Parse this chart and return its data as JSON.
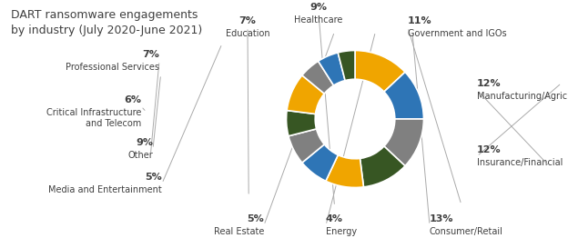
{
  "title": "DART ransomware engagements\nby industry (July 2020-June 2021)",
  "segments": [
    {
      "label": "Consumer/Retail",
      "pct": 13,
      "color": "#F0A500"
    },
    {
      "label": "Insurance/Financial",
      "pct": 12,
      "color": "#2E75B6"
    },
    {
      "label": "Manufacturing/Agriculture",
      "pct": 12,
      "color": "#808080"
    },
    {
      "label": "Government and IGOs",
      "pct": 11,
      "color": "#375623"
    },
    {
      "label": "Healthcare",
      "pct": 9,
      "color": "#F0A500"
    },
    {
      "label": "Education",
      "pct": 7,
      "color": "#2E75B6"
    },
    {
      "label": "Professional Services",
      "pct": 7,
      "color": "#808080"
    },
    {
      "label": "Critical Infrastructure\nand Telecom",
      "pct": 6,
      "color": "#375623"
    },
    {
      "label": "Other",
      "pct": 9,
      "color": "#F0A500"
    },
    {
      "label": "Media and Entertainment",
      "pct": 5,
      "color": "#808080"
    },
    {
      "label": "Real Estate",
      "pct": 5,
      "color": "#2E75B6"
    },
    {
      "label": "Energy",
      "pct": 4,
      "color": "#375623"
    }
  ],
  "label_fontsize": 7.0,
  "pct_fontsize": 8.0,
  "title_fontsize": 9.0,
  "bg_color": "#FFFFFF",
  "text_color": "#404040",
  "line_color": "#AAAAAA"
}
